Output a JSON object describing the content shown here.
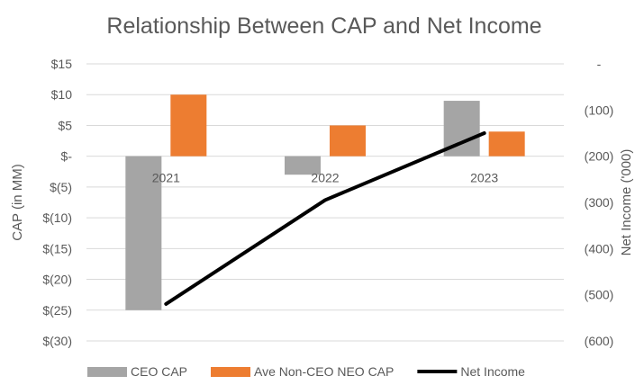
{
  "chart_data": {
    "type": "bar",
    "title": "Relationship Between CAP and Net Income",
    "categories": [
      "2021",
      "2022",
      "2023"
    ],
    "ylabel": "CAP (in MM)",
    "y2label": "Net Income ('000)",
    "ylim": [
      -30,
      15
    ],
    "y_ticks": [
      "$15",
      "$10",
      "$5",
      "$-",
      "$(5)",
      "$(10)",
      "$(15)",
      "$(20)",
      "$(25)",
      "$(30)"
    ],
    "y2lim": [
      -600,
      0
    ],
    "y2_ticks": [
      "-",
      "(100)",
      "(200)",
      "(300)",
      "(400)",
      "(500)",
      "(600)"
    ],
    "grid": true,
    "legend_position": "bottom",
    "series": [
      {
        "name": "CEO CAP",
        "type": "bar",
        "axis": "left",
        "color": "#a5a5a5",
        "values": [
          -25,
          -3,
          9
        ]
      },
      {
        "name": "Ave Non-CEO NEO CAP",
        "type": "bar",
        "axis": "left",
        "color": "#ed7d31",
        "values": [
          10,
          5,
          4
        ]
      },
      {
        "name": "Net Income",
        "type": "line",
        "axis": "right",
        "color": "#000000",
        "values": [
          -520,
          -295,
          -150
        ]
      }
    ]
  }
}
